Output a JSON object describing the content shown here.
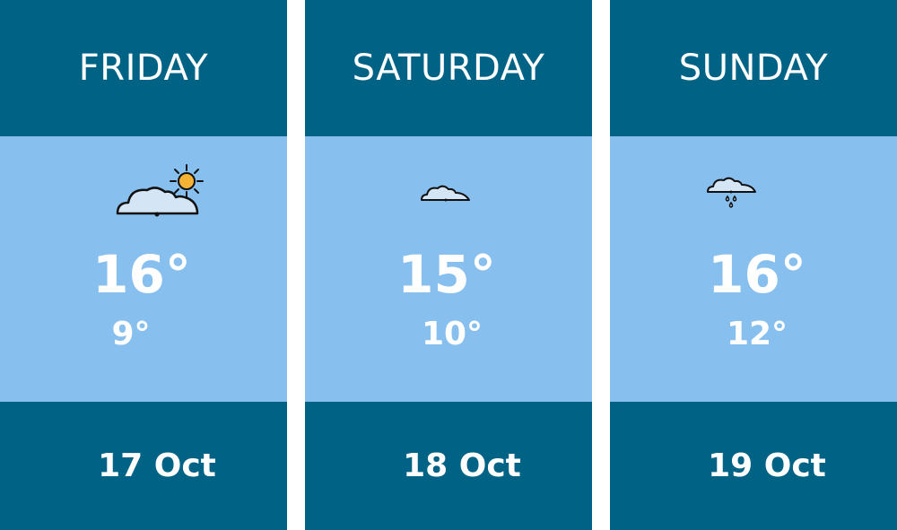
{
  "days": [
    {
      "day": "FRIDAY",
      "high": "16°",
      "low": "9°",
      "date": "17 Oct",
      "icon": "partly-sunny-icon"
    },
    {
      "day": "SATURDAY",
      "high": "15°",
      "low": "10°",
      "date": "18 Oct",
      "icon": "cloud-icon"
    },
    {
      "day": "SUNDAY",
      "high": "16°",
      "low": "12°",
      "date": "19 Oct",
      "icon": "rain-cloud-icon"
    }
  ],
  "colors": {
    "header": "#006385",
    "body": "#87c0ef",
    "sun": "#f5b335",
    "cloud": "#d4e6f6"
  }
}
